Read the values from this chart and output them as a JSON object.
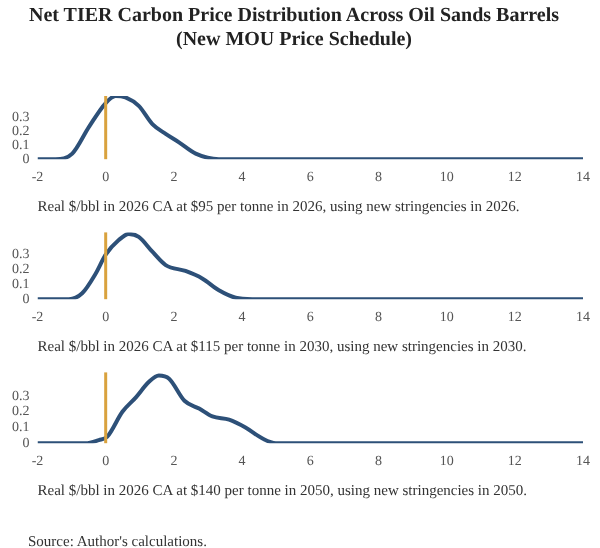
{
  "chart_data": [
    {
      "type": "line",
      "title": [
        "Net TIER Carbon Price Distribution Across Oil Sands Barrels",
        "(New MOU Price Schedule)"
      ],
      "xlabel": "Real $/bbl in 2026 CA at $95 per tonne in 2026, using new stringencies in 2026.",
      "xlim": [
        -2,
        14
      ],
      "xticks": [
        -2,
        0,
        2,
        4,
        6,
        8,
        10,
        12,
        14
      ],
      "ylim": [
        0,
        0.45
      ],
      "yticks": [
        0,
        0.1,
        0.2,
        0.3
      ],
      "grid": false,
      "legend": false,
      "marker": "none",
      "ref_lines": [
        {
          "axis": "x",
          "value": 0,
          "color": "#d9a23e"
        }
      ],
      "series": [
        {
          "color": "#2d5078",
          "x": [
            -2,
            -1.47,
            -0.98,
            -0.49,
            0,
            0.29,
            0.58,
            0.97,
            1.37,
            1.76,
            2.15,
            2.64,
            3.32,
            4.9,
            14
          ],
          "values": [
            0,
            0,
            0.04,
            0.23,
            0.4,
            0.45,
            0.44,
            0.38,
            0.25,
            0.18,
            0.12,
            0.04,
            0,
            0,
            0
          ]
        }
      ]
    },
    {
      "type": "line",
      "xlabel": "Real $/bbl in 2026 CA at $115 per tonne in 2030, using new stringencies in 2030.",
      "xlim": [
        -2,
        14
      ],
      "xticks": [
        -2,
        0,
        2,
        4,
        6,
        8,
        10,
        12,
        14
      ],
      "ylim": [
        0,
        0.45
      ],
      "yticks": [
        0,
        0.1,
        0.2,
        0.3
      ],
      "grid": false,
      "legend": false,
      "marker": "none",
      "ref_lines": [
        {
          "axis": "x",
          "value": 0,
          "color": "#d9a23e"
        }
      ],
      "series": [
        {
          "color": "#2d5078",
          "x": [
            -2,
            -1.08,
            -0.69,
            -0.3,
            0,
            0.39,
            0.68,
            0.97,
            1.37,
            1.76,
            2.34,
            2.83,
            3.32,
            3.81,
            4.3,
            6.06,
            14
          ],
          "values": [
            0,
            0,
            0.04,
            0.17,
            0.3,
            0.4,
            0.44,
            0.42,
            0.32,
            0.23,
            0.19,
            0.14,
            0.06,
            0.01,
            0,
            0,
            0
          ]
        }
      ]
    },
    {
      "type": "line",
      "xlabel": "Real $/bbl in 2026 CA at $140 per tonne in 2050, using new stringencies in 2050.",
      "xlim": [
        -2,
        14
      ],
      "xticks": [
        -2,
        0,
        2,
        4,
        6,
        8,
        10,
        12,
        14
      ],
      "ylim": [
        0,
        0.45
      ],
      "yticks": [
        0,
        0.1,
        0.2,
        0.3
      ],
      "grid": false,
      "legend": false,
      "marker": "none",
      "ref_lines": [
        {
          "axis": "x",
          "value": 0,
          "color": "#d9a23e"
        }
      ],
      "annotations": [
        "Source: Author's calculations."
      ],
      "series": [
        {
          "color": "#2d5078",
          "x": [
            -2,
            -0.59,
            -0.2,
            0.04,
            0.49,
            0.88,
            1.27,
            1.56,
            1.86,
            2.31,
            2.74,
            3.13,
            3.62,
            4.1,
            4.6,
            4.99,
            6.45,
            14
          ],
          "values": [
            0,
            0,
            0.02,
            0.04,
            0.2,
            0.29,
            0.39,
            0.43,
            0.41,
            0.27,
            0.22,
            0.17,
            0.15,
            0.1,
            0.03,
            0,
            0,
            0
          ]
        }
      ]
    }
  ]
}
